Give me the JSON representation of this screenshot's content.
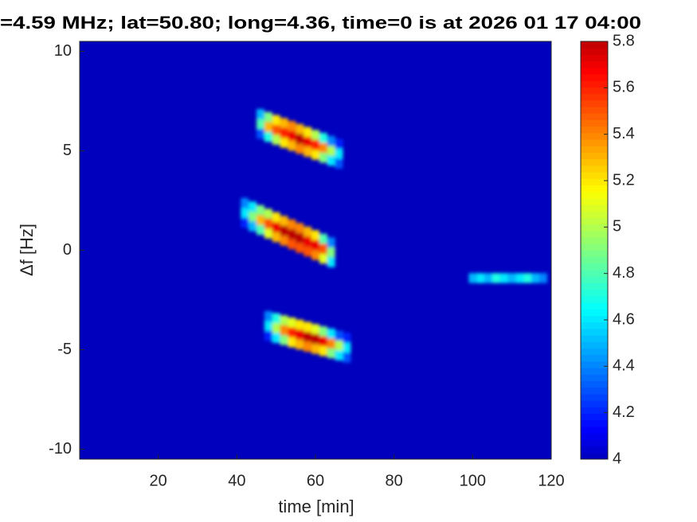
{
  "chart_data": {
    "type": "heatmap",
    "title": "=4.59 MHz;  lat=50.80; long=4.36, time=0 is at 2026 01 17 04:00",
    "xlabel": "time [min]",
    "ylabel": "Δf [Hz]",
    "xlim": [
      0,
      120
    ],
    "xticks": [
      20,
      40,
      60,
      80,
      100,
      120
    ],
    "ylim": [
      -10.5,
      10.5
    ],
    "yticks": [
      -10,
      -5,
      0,
      5,
      10
    ],
    "clim": [
      4,
      5.8
    ],
    "cticks": [
      4,
      4.2,
      4.4,
      4.6,
      4.8,
      5,
      5.2,
      5.4,
      5.6,
      5.8
    ],
    "colormap": "jet",
    "x": [
      46,
      46,
      46,
      48,
      48,
      48,
      50,
      50,
      50,
      52,
      52,
      52,
      54,
      54,
      54,
      56,
      56,
      56,
      58,
      58,
      58,
      60,
      60,
      60,
      62,
      62,
      62,
      64,
      64,
      64,
      66,
      66,
      66,
      42,
      42,
      42,
      44,
      44,
      44,
      46,
      46,
      46,
      48,
      48,
      48,
      50,
      50,
      50,
      52,
      52,
      52,
      54,
      54,
      54,
      56,
      56,
      56,
      58,
      58,
      58,
      60,
      60,
      60,
      62,
      62,
      62,
      64,
      64,
      64,
      48,
      48,
      48,
      50,
      50,
      50,
      52,
      52,
      52,
      54,
      54,
      54,
      56,
      56,
      56,
      58,
      58,
      58,
      60,
      60,
      60,
      62,
      62,
      62,
      64,
      64,
      64,
      66,
      66,
      66,
      68,
      68,
      68,
      100,
      102,
      104,
      106,
      108,
      110,
      112,
      114,
      116,
      118
    ],
    "y": [
      5.85,
      6.35,
      6.85,
      5.7,
      6.2,
      6.7,
      5.55,
      6.05,
      6.55,
      5.4,
      5.9,
      6.4,
      5.25,
      5.75,
      6.25,
      5.1,
      5.6,
      6.1,
      4.95,
      5.45,
      5.95,
      4.8,
      5.3,
      5.8,
      4.65,
      5.15,
      5.65,
      4.5,
      5.0,
      5.5,
      4.35,
      4.85,
      5.35,
      1.38,
      1.88,
      2.38,
      1.2,
      1.7,
      2.2,
      1.02,
      1.52,
      2.02,
      0.84,
      1.34,
      1.84,
      0.66,
      1.16,
      1.66,
      0.48,
      0.98,
      1.48,
      0.3,
      0.8,
      1.3,
      0.12,
      0.62,
      1.12,
      -0.06,
      0.44,
      0.94,
      -0.24,
      0.26,
      0.76,
      -0.42,
      0.08,
      0.58,
      -0.6,
      -0.1,
      0.4,
      -4.3,
      -3.8,
      -3.3,
      -4.41,
      -3.91,
      -3.41,
      -4.52,
      -4.02,
      -3.52,
      -4.63,
      -4.13,
      -3.63,
      -4.74,
      -4.24,
      -3.74,
      -4.85,
      -4.35,
      -3.85,
      -4.96,
      -4.46,
      -3.96,
      -5.07,
      -4.57,
      -4.07,
      -5.18,
      -4.68,
      -4.18,
      -5.29,
      -4.79,
      -4.29,
      -5.4,
      -4.9,
      -4.4,
      -1.4,
      -1.4,
      -1.4,
      -1.4,
      -1.4,
      -1.4,
      -1.4,
      -1.4,
      -1.4,
      -1.4
    ],
    "values": [
      4.3,
      4.8,
      4.5,
      4.7,
      5.3,
      4.9,
      5.0,
      5.5,
      5.2,
      5.2,
      5.6,
      5.3,
      5.3,
      5.7,
      5.4,
      5.4,
      5.8,
      5.3,
      5.3,
      5.7,
      5.2,
      5.2,
      5.6,
      5.0,
      4.9,
      5.4,
      4.7,
      4.6,
      5.0,
      4.4,
      4.3,
      4.6,
      4.2,
      4.2,
      4.6,
      4.4,
      4.5,
      4.9,
      4.6,
      4.8,
      5.3,
      4.9,
      5.1,
      5.5,
      5.0,
      5.3,
      5.7,
      5.2,
      5.4,
      5.8,
      5.3,
      5.5,
      5.8,
      5.4,
      5.5,
      5.8,
      5.4,
      5.5,
      5.7,
      5.3,
      5.4,
      5.7,
      5.2,
      5.1,
      5.5,
      4.8,
      4.6,
      4.9,
      4.4,
      4.2,
      4.6,
      4.4,
      4.6,
      5.0,
      4.7,
      4.9,
      5.4,
      5.0,
      5.2,
      5.6,
      5.1,
      5.3,
      5.7,
      5.2,
      5.4,
      5.8,
      5.2,
      5.3,
      5.8,
      5.1,
      5.2,
      5.7,
      4.9,
      4.9,
      5.4,
      4.6,
      4.6,
      5.0,
      4.3,
      4.3,
      4.6,
      4.2,
      4.5,
      4.6,
      4.5,
      4.7,
      4.6,
      4.5,
      4.6,
      4.7,
      4.5,
      4.4
    ]
  }
}
